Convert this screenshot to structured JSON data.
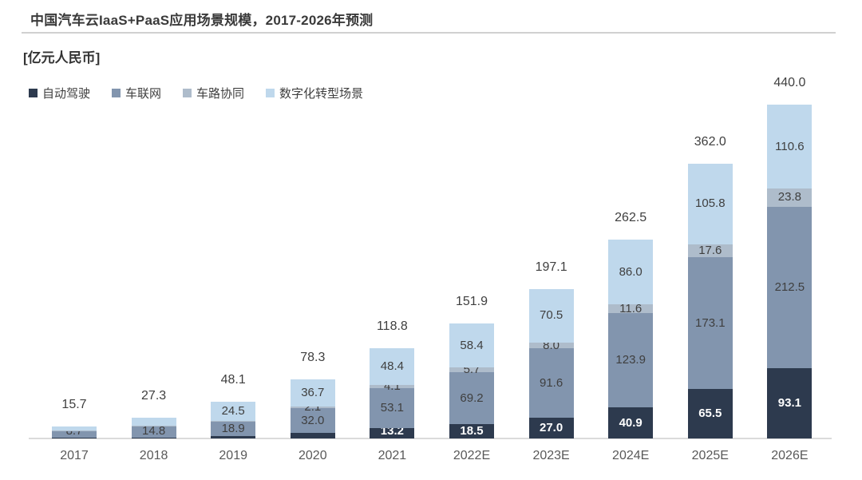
{
  "header": {
    "title": "中国汽车云IaaS+PaaS应用场景规模，2017-2026年预测",
    "unit_label": "[亿元人民币]"
  },
  "colors": {
    "auto_driving": "#2d3a4e",
    "telematics": "#8295ae",
    "v2x": "#aebccb",
    "digital_transform": "#bfd8ec",
    "axis_line": "#dbdbdb",
    "label_text": "#3f3f3f",
    "tick_text": "#595959",
    "label_on_dark": "#ffffff"
  },
  "chart_data": {
    "type": "bar",
    "stacked": true,
    "title": "中国汽车云IaaS+PaaS应用场景规模，2017-2026年预测",
    "unit": "亿元人民币",
    "xlabel": "",
    "ylabel": "亿元人民币",
    "ylim": [
      0,
      460
    ],
    "grid": false,
    "legend_position": "top-left",
    "categories": [
      "2017",
      "2018",
      "2019",
      "2020",
      "2021",
      "2022E",
      "2023E",
      "2024E",
      "2025E",
      "2026E"
    ],
    "series": [
      {
        "name": "自动驾驶",
        "color": "#2d3a4e",
        "values": [
          0.8,
          1.5,
          3.0,
          7.5,
          13.2,
          18.5,
          27.0,
          40.9,
          65.5,
          93.1
        ],
        "labels": [
          null,
          null,
          null,
          null,
          "13.2",
          "18.5",
          "27.0",
          "40.9",
          "65.5",
          "93.1"
        ]
      },
      {
        "name": "车联网",
        "color": "#8295ae",
        "values": [
          8.7,
          14.8,
          18.9,
          32.0,
          53.1,
          69.2,
          91.6,
          123.9,
          173.1,
          212.5
        ],
        "labels": [
          "8.7",
          "14.8",
          "18.9",
          "32.0",
          "53.1",
          "69.2",
          "91.6",
          "123.9",
          "173.1",
          "212.5"
        ]
      },
      {
        "name": "车路协同",
        "color": "#aebccb",
        "values": [
          0.6,
          1.0,
          1.7,
          2.1,
          4.1,
          5.7,
          8.0,
          11.6,
          17.6,
          23.8
        ],
        "labels": [
          null,
          null,
          null,
          "2.1",
          "4.1",
          "5.7",
          "8.0",
          "11.6",
          "17.6",
          "23.8"
        ]
      },
      {
        "name": "数字化转型场景",
        "color": "#bfd8ec",
        "values": [
          5.6,
          10.0,
          24.5,
          36.7,
          48.4,
          58.4,
          70.5,
          86.0,
          105.8,
          110.6
        ],
        "labels": [
          null,
          null,
          "24.5",
          "36.7",
          "48.4",
          "58.4",
          "70.5",
          "86.0",
          "105.8",
          "110.6"
        ]
      }
    ],
    "totals": [
      "15.7",
      "27.3",
      "48.1",
      "78.3",
      "118.8",
      "151.9",
      "197.1",
      "262.5",
      "362.0",
      "440.0"
    ]
  }
}
